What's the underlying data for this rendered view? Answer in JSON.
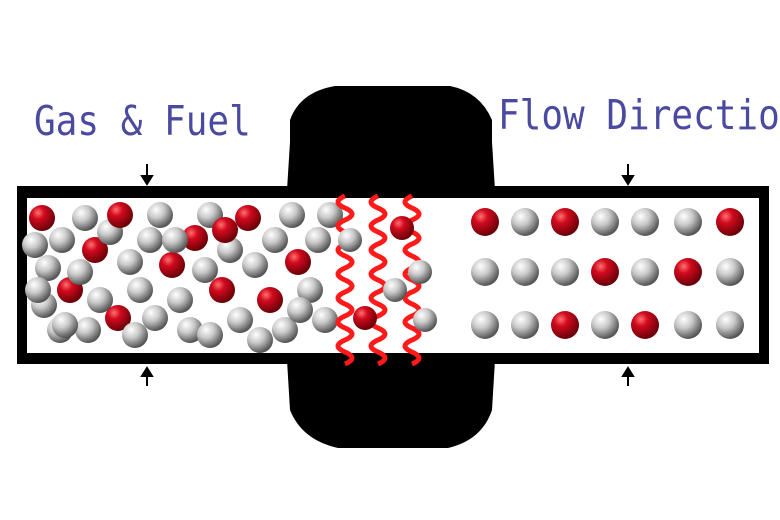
{
  "labels": {
    "gas_fuel": "Gas & Fuel",
    "flow_direction": "Flow Direction"
  },
  "colors": {
    "tube": "#000000",
    "background": "#ffffff",
    "label_text": "#4a4aa0",
    "molecule_red": "#c0001a",
    "molecule_gray": "#c8c8c8",
    "heat_wave": "#ff1a1a"
  }
}
